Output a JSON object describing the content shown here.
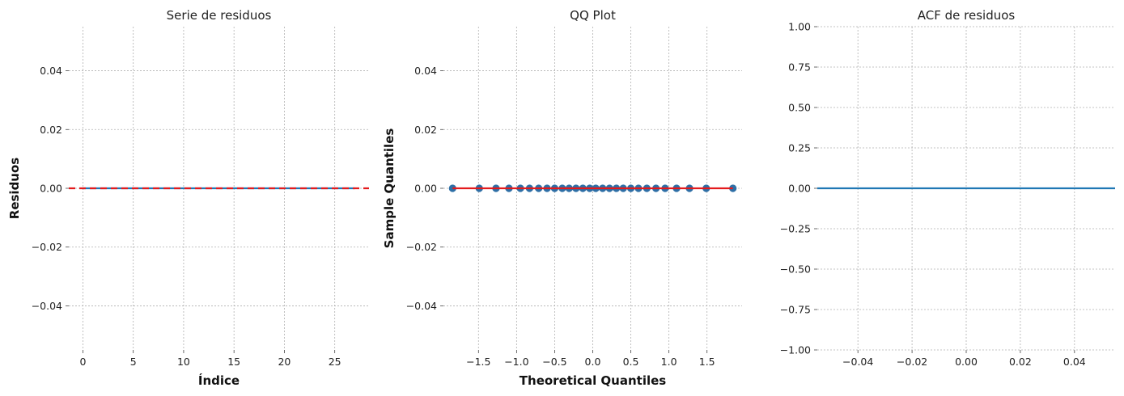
{
  "chart_data": [
    {
      "type": "line",
      "title": "Serie de residuos",
      "xlabel": "Índice",
      "ylabel": "Residuos",
      "xlim": [
        -1.4,
        28.4
      ],
      "ylim": [
        -0.055,
        0.055
      ],
      "xticks": [
        0,
        5,
        10,
        15,
        20,
        25
      ],
      "xtick_labels": [
        "0",
        "5",
        "10",
        "15",
        "20",
        "25"
      ],
      "yticks": [
        -0.04,
        -0.02,
        0.0,
        0.02,
        0.04
      ],
      "ytick_labels": [
        "−0.04",
        "−0.02",
        "0.00",
        "0.02",
        "0.04"
      ],
      "grid": true,
      "series": [
        {
          "style": "line",
          "color": "#1f77b4",
          "x": [
            0,
            1,
            2,
            3,
            4,
            5,
            6,
            7,
            8,
            9,
            10,
            11,
            12,
            13,
            14,
            15,
            16,
            17,
            18,
            19,
            20,
            21,
            22,
            23,
            24,
            25,
            26,
            27
          ],
          "y": [
            0,
            0,
            0,
            0,
            0,
            0,
            0,
            0,
            0,
            0,
            0,
            0,
            0,
            0,
            0,
            0,
            0,
            0,
            0,
            0,
            0,
            0,
            0,
            0,
            0,
            0,
            0,
            0
          ]
        },
        {
          "style": "hline-dashed",
          "color": "#e31a1c",
          "y": 0
        }
      ]
    },
    {
      "type": "scatter",
      "title": "QQ Plot",
      "xlabel": "Theoretical Quantiles",
      "ylabel": "Sample Quantiles",
      "xlim": [
        -1.96,
        1.96
      ],
      "ylim": [
        -0.055,
        0.055
      ],
      "xticks": [
        -1.5,
        -1.0,
        -0.5,
        0.0,
        0.5,
        1.0,
        1.5
      ],
      "xtick_labels": [
        "−1.5",
        "−1.0",
        "−0.5",
        "0.0",
        "0.5",
        "1.0",
        "1.5"
      ],
      "yticks": [
        -0.04,
        -0.02,
        0.0,
        0.02,
        0.04
      ],
      "ytick_labels": [
        "−0.04",
        "−0.02",
        "0.00",
        "0.02",
        "0.04"
      ],
      "grid": true,
      "series": [
        {
          "style": "points",
          "color": "#2e6fa6",
          "x": [
            -1.84,
            -1.49,
            -1.27,
            -1.1,
            -0.95,
            -0.83,
            -0.71,
            -0.6,
            -0.5,
            -0.4,
            -0.31,
            -0.22,
            -0.13,
            -0.04,
            0.04,
            0.13,
            0.22,
            0.31,
            0.4,
            0.5,
            0.6,
            0.71,
            0.83,
            0.95,
            1.1,
            1.27,
            1.49,
            1.84
          ],
          "y": [
            0,
            0,
            0,
            0,
            0,
            0,
            0,
            0,
            0,
            0,
            0,
            0,
            0,
            0,
            0,
            0,
            0,
            0,
            0,
            0,
            0,
            0,
            0,
            0,
            0,
            0,
            0,
            0
          ]
        },
        {
          "style": "line",
          "color": "#e31a1c",
          "x": [
            -1.84,
            1.84
          ],
          "y": [
            0,
            0
          ]
        }
      ]
    },
    {
      "type": "line",
      "title": "ACF de residuos",
      "xlabel": "",
      "ylabel": "",
      "xlim": [
        -0.055,
        0.055
      ],
      "ylim": [
        -1.0,
        1.0
      ],
      "xticks": [
        -0.04,
        -0.02,
        0.0,
        0.02,
        0.04
      ],
      "xtick_labels": [
        "−0.04",
        "−0.02",
        "0.00",
        "0.02",
        "0.04"
      ],
      "yticks": [
        -1.0,
        -0.75,
        -0.5,
        -0.25,
        0.0,
        0.25,
        0.5,
        0.75,
        1.0
      ],
      "ytick_labels": [
        "−1.00",
        "−0.75",
        "−0.50",
        "−0.25",
        "0.00",
        "0.25",
        "0.50",
        "0.75",
        "1.00"
      ],
      "grid": true,
      "series": [
        {
          "style": "hline",
          "color": "#1f77b4",
          "y": 0
        }
      ]
    }
  ]
}
